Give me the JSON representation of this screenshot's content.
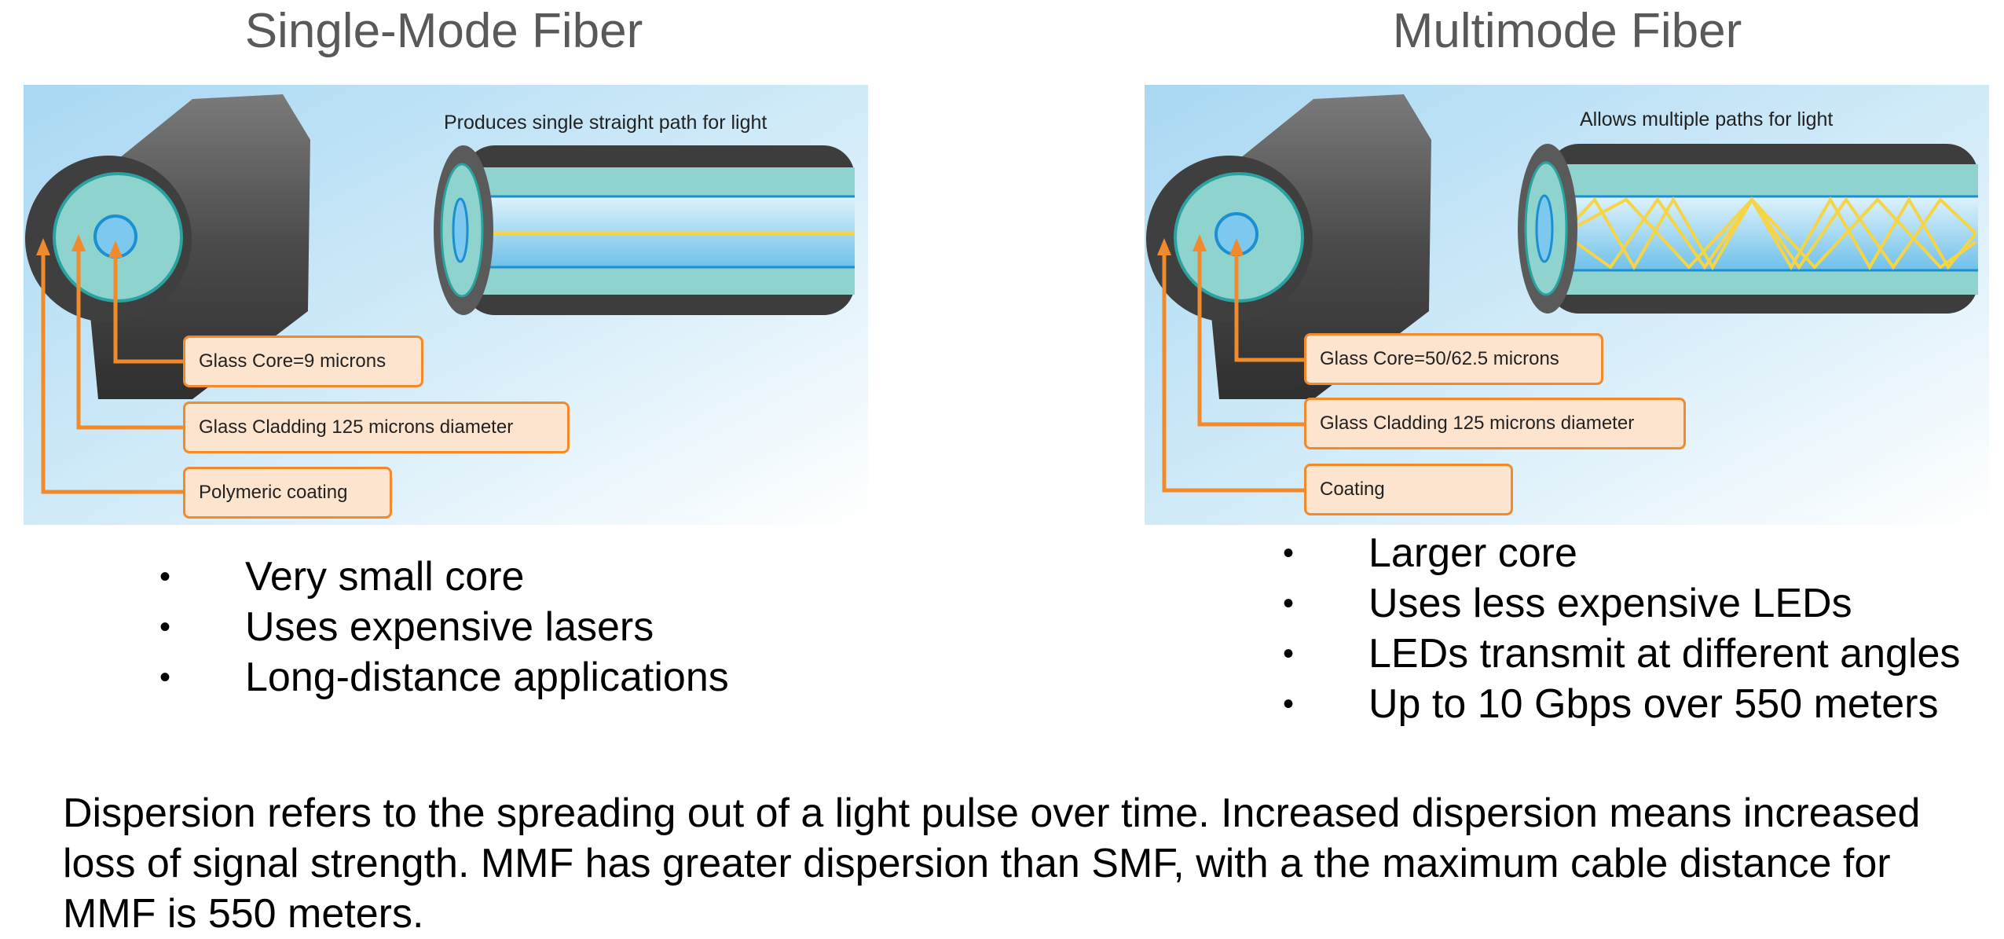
{
  "single_mode": {
    "title": "Single-Mode Fiber",
    "caption": "Produces single straight path for light",
    "callouts": [
      "Glass Core=9 microns",
      "Glass Cladding 125 microns diameter",
      "Polymeric coating"
    ],
    "bullets": [
      "Very small core",
      "Uses expensive lasers",
      "Long-distance applications"
    ]
  },
  "multimode": {
    "title": "Multimode Fiber",
    "caption": "Allows multiple paths for light",
    "callouts": [
      "Glass Core=50/62.5 microns",
      "Glass Cladding 125 microns diameter",
      "Coating"
    ],
    "bullets": [
      "Larger core",
      "Uses less expensive LEDs",
      "LEDs transmit at different angles",
      "Up to 10 Gbps over 550 meters"
    ]
  },
  "paragraph": "Dispersion refers to the spreading out of a light pulse over time. Increased dispersion means increased loss of signal strength. MMF has greater dispersion than SMF, with a the maximum cable distance for MMF is 550 meters.",
  "colors": {
    "title_gray": "#595959",
    "callout_border": "#f08a2c",
    "callout_fill": "#fde4cf",
    "cladding": "#8fd3cf",
    "core": "#7cc8ee",
    "jacket": "#4a4a4a",
    "light_ray": "#f5d547"
  }
}
